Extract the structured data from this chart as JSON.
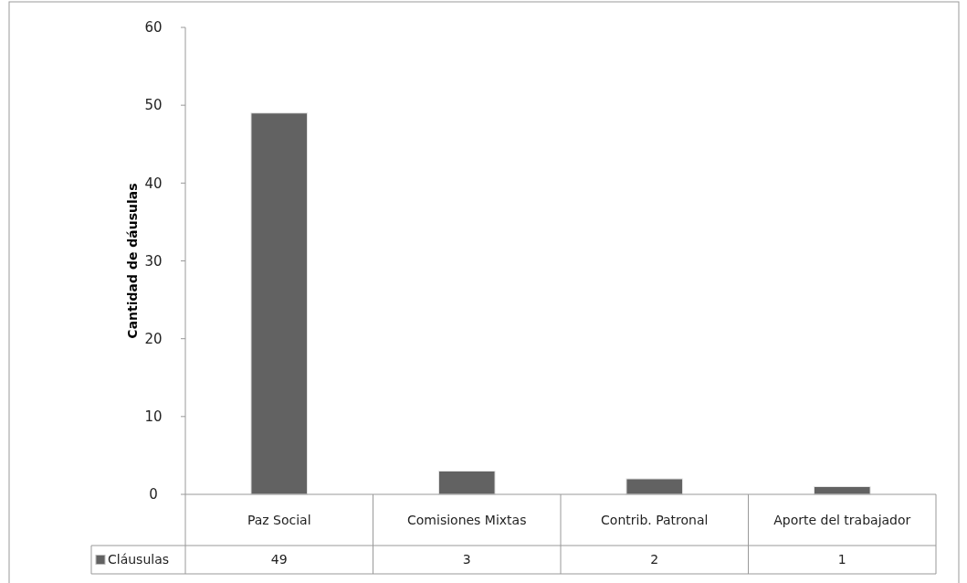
{
  "chart_data": {
    "type": "bar",
    "ylabel": "Cantidad de dáusulas",
    "categories": [
      "Paz Social",
      "Comisiones Mixtas",
      "Contrib. Patronal",
      "Aporte del trabajador"
    ],
    "series": [
      {
        "name": "Cláusulas",
        "color": "#626262",
        "values": [
          49,
          3,
          2,
          1
        ]
      }
    ],
    "ylim": [
      0,
      60
    ],
    "yticks": [
      0,
      10,
      20,
      30,
      40,
      50,
      60
    ],
    "grid": false,
    "legend": "bottom",
    "data_labels": true
  }
}
